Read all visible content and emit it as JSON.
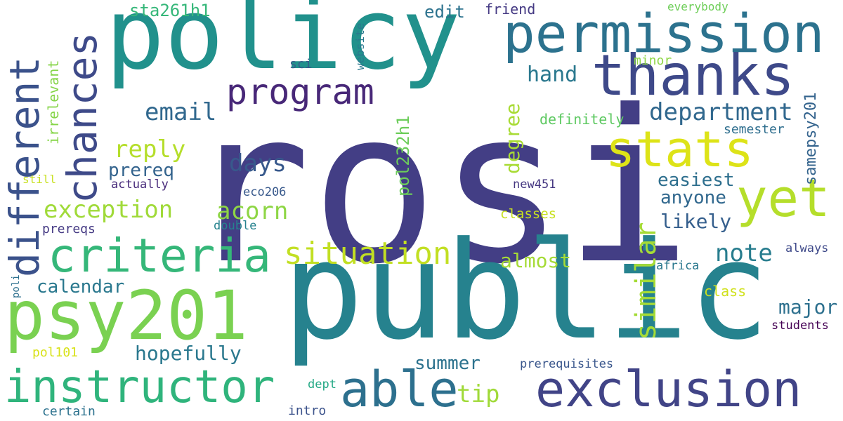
{
  "words": [
    {
      "id": "rosi",
      "text": "rosi",
      "color": "#433e85"
    },
    {
      "id": "public",
      "text": "public",
      "color": "#26828e"
    },
    {
      "id": "policy",
      "text": "policy",
      "color": "#21918c"
    },
    {
      "id": "permission",
      "text": "permission",
      "color": "#2c728e"
    },
    {
      "id": "thanks",
      "text": "thanks",
      "color": "#3e4989"
    },
    {
      "id": "stats",
      "text": "stats",
      "color": "#dde318"
    },
    {
      "id": "yet",
      "text": "yet",
      "color": "#b5de2b"
    },
    {
      "id": "psy201",
      "text": "psy201",
      "color": "#7ad151"
    },
    {
      "id": "instructor",
      "text": "instructor",
      "color": "#2fb47c"
    },
    {
      "id": "exclusion",
      "text": "exclusion",
      "color": "#414487"
    },
    {
      "id": "able",
      "text": "able",
      "color": "#2d708e"
    },
    {
      "id": "criteria",
      "text": "criteria",
      "color": "#35b779"
    },
    {
      "id": "different",
      "text": "different",
      "color": "#3b528b"
    },
    {
      "id": "chances",
      "text": "chances",
      "color": "#3e4a89"
    },
    {
      "id": "program",
      "text": "program",
      "color": "#482878"
    },
    {
      "id": "situation",
      "text": "situation",
      "color": "#c2df23"
    },
    {
      "id": "similar",
      "text": "similar",
      "color": "#a5db36"
    },
    {
      "id": "email",
      "text": "email",
      "color": "#31688e"
    },
    {
      "id": "department",
      "text": "department",
      "color": "#31688e"
    },
    {
      "id": "reply",
      "text": "reply",
      "color": "#b5de2b"
    },
    {
      "id": "days",
      "text": "days",
      "color": "#38598c"
    },
    {
      "id": "exception",
      "text": "exception",
      "color": "#a0da39"
    },
    {
      "id": "acorn",
      "text": "acorn",
      "color": "#8ed645"
    },
    {
      "id": "prereq",
      "text": "prereq",
      "color": "#33638d"
    },
    {
      "id": "calendar",
      "text": "calendar",
      "color": "#2a788e"
    },
    {
      "id": "hopefully",
      "text": "hopefully",
      "color": "#2a788e"
    },
    {
      "id": "summer",
      "text": "summer",
      "color": "#2c728e"
    },
    {
      "id": "tip",
      "text": "tip",
      "color": "#a0da39"
    },
    {
      "id": "almost",
      "text": "almost",
      "color": "#a5db36"
    },
    {
      "id": "note",
      "text": "note",
      "color": "#287d8e"
    },
    {
      "id": "likely",
      "text": "likely",
      "color": "#355f8d"
    },
    {
      "id": "anyone",
      "text": "anyone",
      "color": "#31688e"
    },
    {
      "id": "easiest",
      "text": "easiest",
      "color": "#2e6f8e"
    },
    {
      "id": "major",
      "text": "major",
      "color": "#2d708e"
    },
    {
      "id": "hand",
      "text": "hand",
      "color": "#2a788e"
    },
    {
      "id": "edit",
      "text": "edit",
      "color": "#2c728e"
    },
    {
      "id": "sta261h1",
      "text": "sta261h1",
      "color": "#35b779"
    },
    {
      "id": "degree",
      "text": "degree",
      "color": "#a8db34"
    },
    {
      "id": "pol232h1",
      "text": "pol232h1",
      "color": "#6ccd5a"
    },
    {
      "id": "samepsy201",
      "text": "samepsy201",
      "color": "#33638d"
    },
    {
      "id": "irrelevant",
      "text": "irrelevant",
      "color": "#86d549"
    },
    {
      "id": "friend",
      "text": "friend",
      "color": "#443983"
    },
    {
      "id": "everybody",
      "text": "everybody",
      "color": "#6ece58"
    },
    {
      "id": "website",
      "text": "website",
      "color": "#2a788e"
    },
    {
      "id": "sci",
      "text": "sci",
      "color": "#365d8d"
    },
    {
      "id": "minor",
      "text": "minor",
      "color": "#8ed645"
    },
    {
      "id": "definitely",
      "text": "definitely",
      "color": "#5ec962"
    },
    {
      "id": "semester",
      "text": "semester",
      "color": "#2e6e8e"
    },
    {
      "id": "still",
      "text": "still",
      "color": "#c8e020"
    },
    {
      "id": "actually",
      "text": "actually",
      "color": "#472a7a"
    },
    {
      "id": "eco206",
      "text": "eco206",
      "color": "#38598c"
    },
    {
      "id": "new451",
      "text": "new451",
      "color": "#453781"
    },
    {
      "id": "classes",
      "text": "classes",
      "color": "#c8e020"
    },
    {
      "id": "prereqs",
      "text": "prereqs",
      "color": "#443983"
    },
    {
      "id": "double",
      "text": "double",
      "color": "#26828e"
    },
    {
      "id": "always",
      "text": "always",
      "color": "#3e4989"
    },
    {
      "id": "africa",
      "text": "africa",
      "color": "#2a788e"
    },
    {
      "id": "class",
      "text": "class",
      "color": "#d0e11c"
    },
    {
      "id": "students",
      "text": "students",
      "color": "#440154"
    },
    {
      "id": "poli",
      "text": "poli",
      "color": "#2d708e"
    },
    {
      "id": "pol101",
      "text": "pol101",
      "color": "#d8e219"
    },
    {
      "id": "prerequisites",
      "text": "prerequisites",
      "color": "#39568c"
    },
    {
      "id": "dept",
      "text": "dept",
      "color": "#22a884"
    },
    {
      "id": "certain",
      "text": "certain",
      "color": "#2c728e"
    },
    {
      "id": "intro",
      "text": "intro",
      "color": "#3b528b"
    }
  ]
}
